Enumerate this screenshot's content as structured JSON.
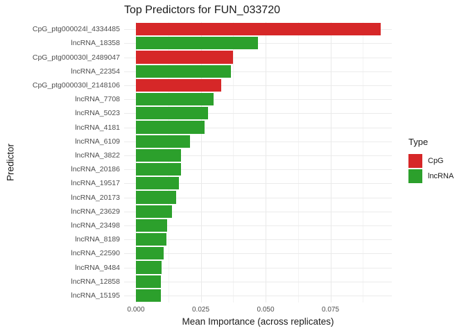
{
  "chart_data": {
    "type": "bar",
    "orientation": "horizontal",
    "title": "Top Predictors for FUN_033720",
    "xlabel": "Mean Importance (across replicates)",
    "ylabel": "Predictor",
    "categories": [
      "CpG_ptg000024l_4334485",
      "lncRNA_18358",
      "CpG_ptg000030l_2489047",
      "lncRNA_22354",
      "CpG_ptg000030l_2148106",
      "lncRNA_7708",
      "lncRNA_5023",
      "lncRNA_4181",
      "lncRNA_6109",
      "lncRNA_3822",
      "lncRNA_20186",
      "lncRNA_19517",
      "lncRNA_20173",
      "lncRNA_23629",
      "lncRNA_23498",
      "lncRNA_8189",
      "lncRNA_22590",
      "lncRNA_9484",
      "lncRNA_12858",
      "lncRNA_15195"
    ],
    "values": [
      0.0943,
      0.0471,
      0.0374,
      0.0366,
      0.0329,
      0.0299,
      0.0278,
      0.0264,
      0.0209,
      0.0175,
      0.0174,
      0.0166,
      0.0156,
      0.0138,
      0.012,
      0.0117,
      0.0106,
      0.0099,
      0.0097,
      0.0096
    ],
    "types": [
      "CpG",
      "lncRNA",
      "CpG",
      "lncRNA",
      "CpG",
      "lncRNA",
      "lncRNA",
      "lncRNA",
      "lncRNA",
      "lncRNA",
      "lncRNA",
      "lncRNA",
      "lncRNA",
      "lncRNA",
      "lncRNA",
      "lncRNA",
      "lncRNA",
      "lncRNA",
      "lncRNA",
      "lncRNA"
    ],
    "colors": {
      "CpG": "#d62728",
      "lncRNA": "#2ca02c"
    },
    "xlim": [
      -0.0047,
      0.0988
    ],
    "xticks": {
      "values": [
        0,
        0.025,
        0.05,
        0.075
      ],
      "labels": [
        "0.000",
        "0.025",
        "0.050",
        "0.075"
      ]
    },
    "minor_ticks": [
      0.0125,
      0.0375,
      0.0625,
      0.0875
    ],
    "grid": true,
    "grid_color": "#ebebeb",
    "axis_text_color": "#4d4d4d",
    "legend": {
      "title": "Type",
      "position": "right",
      "entries": [
        {
          "label": "CpG",
          "color": "#d62728"
        },
        {
          "label": "lncRNA",
          "color": "#2ca02c"
        }
      ]
    }
  }
}
